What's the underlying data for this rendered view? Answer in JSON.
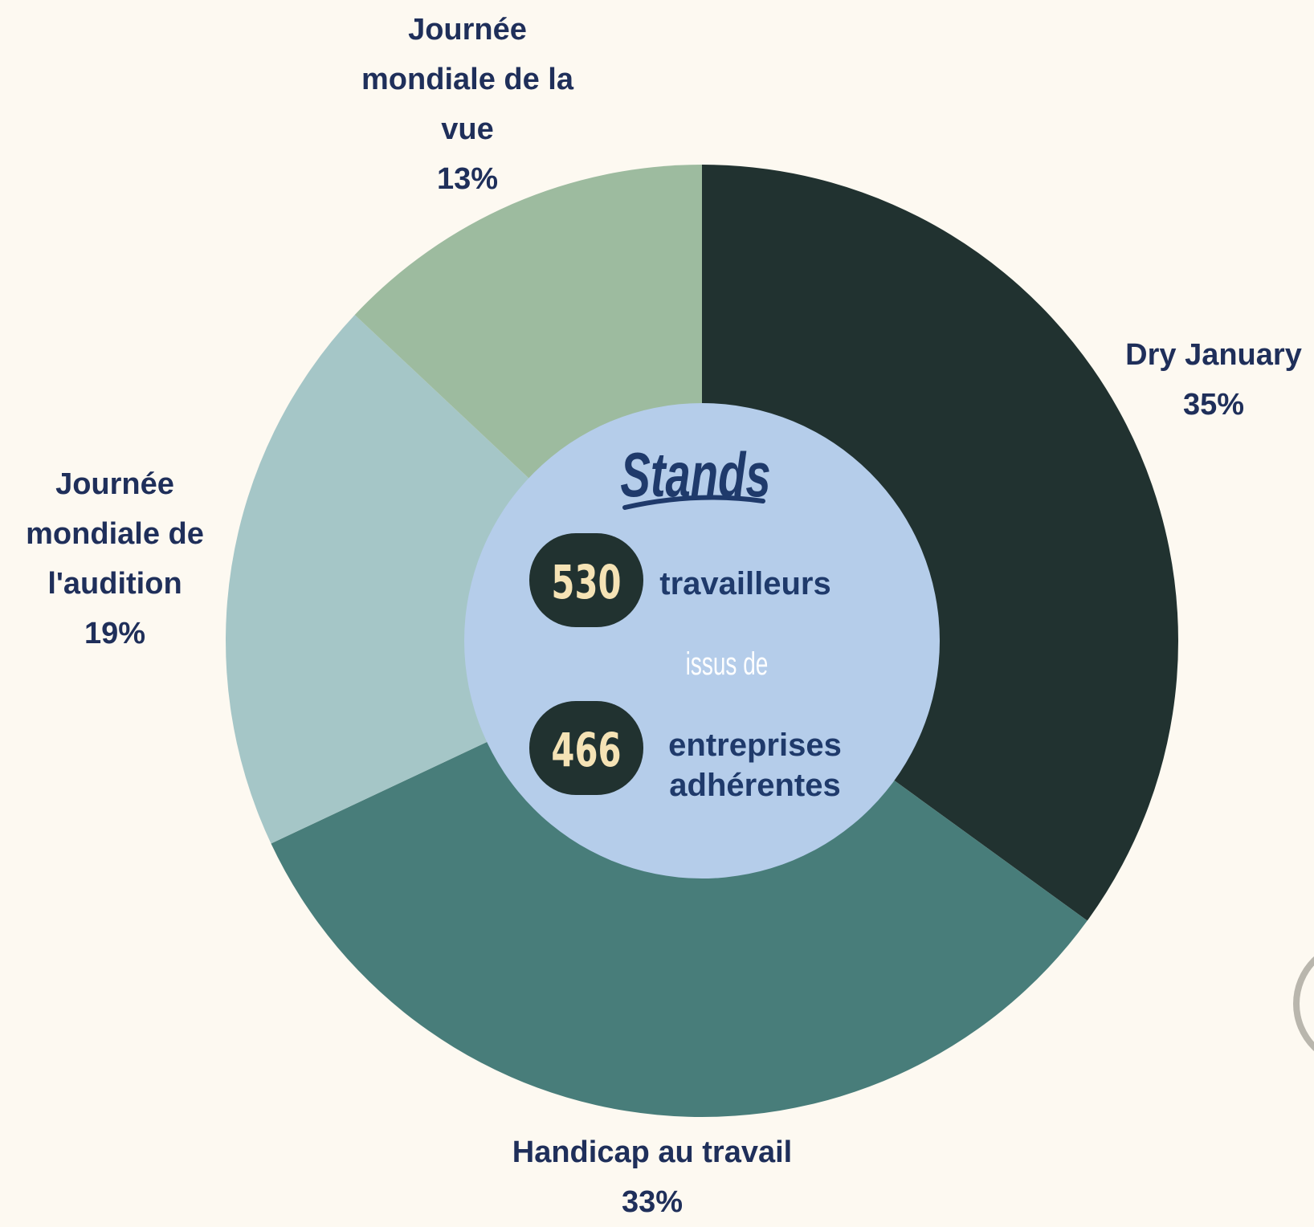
{
  "chart_data": {
    "type": "donut",
    "categories": [
      "Dry January",
      "Handicap au travail",
      "Journée mondiale de l'audition",
      "Journée mondiale de la vue"
    ],
    "values": [
      35,
      33,
      19,
      13
    ],
    "value_labels": [
      "35%",
      "33%",
      "19%",
      "13%"
    ],
    "colors": [
      "#213230",
      "#487d7a",
      "#a5c6c7",
      "#9dbb9f"
    ],
    "center": {
      "title": "Stands",
      "stats": [
        {
          "value": 530,
          "label": "travailleurs"
        },
        {
          "value": 466,
          "label": "entreprises adhérentes"
        }
      ],
      "connector": "issus de"
    }
  }
}
